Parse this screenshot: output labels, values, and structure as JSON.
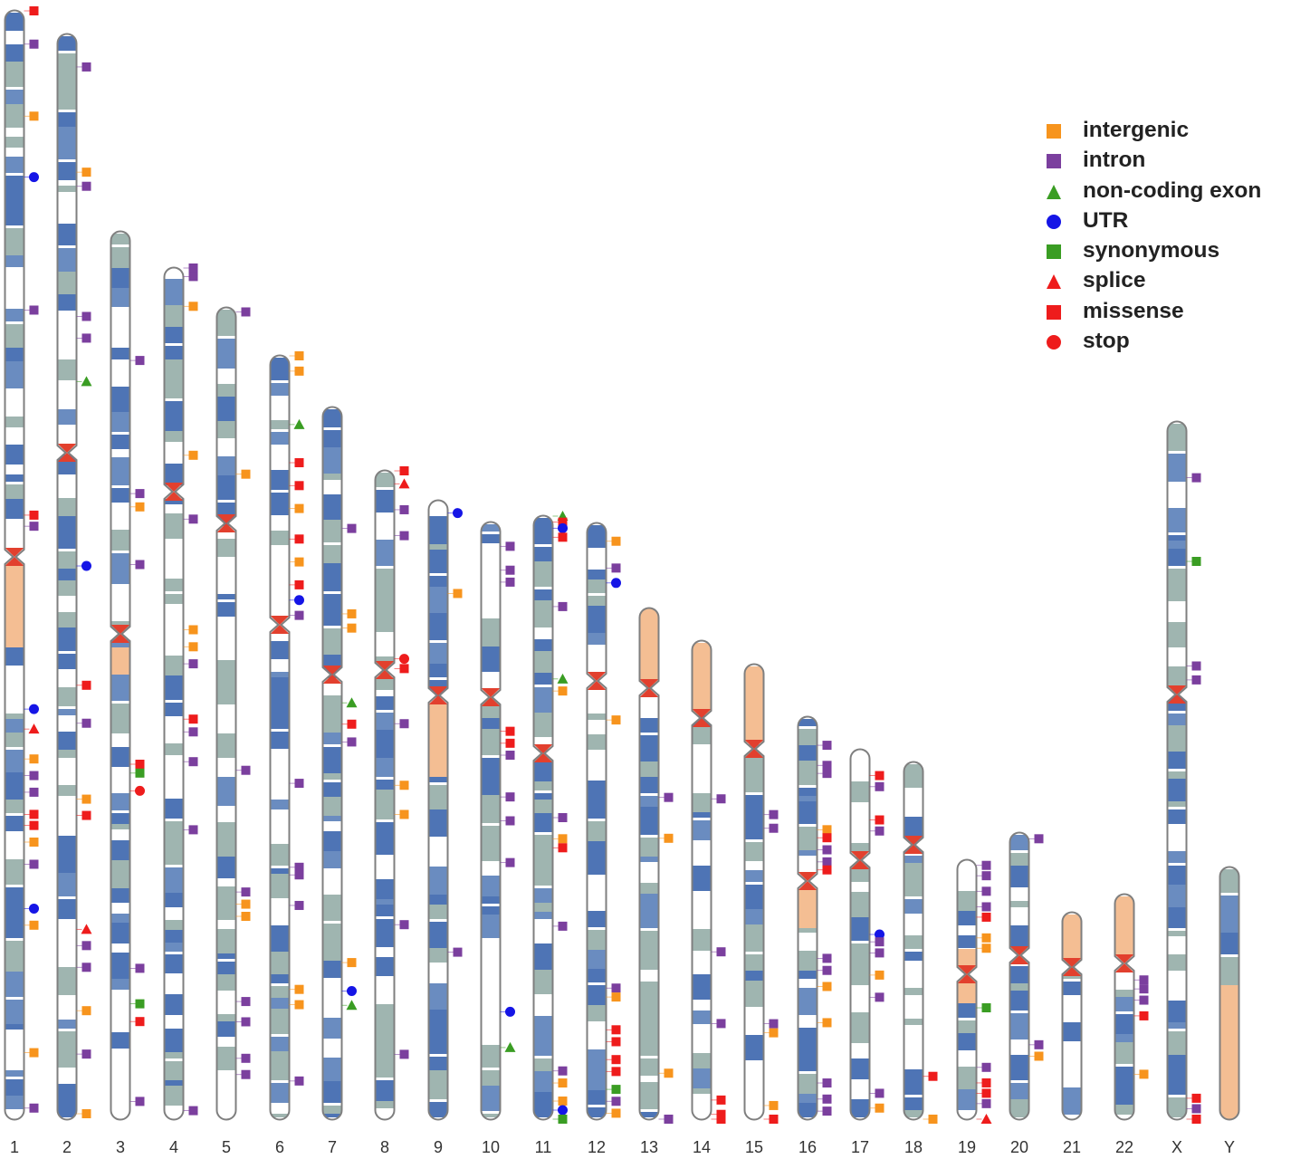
{
  "legend": {
    "items": [
      {
        "key": "intergenic",
        "label": "intergenic",
        "shape": "square",
        "color": "#F7941D"
      },
      {
        "key": "intron",
        "label": "intron",
        "shape": "square",
        "color": "#7B3F9E"
      },
      {
        "key": "noncoding",
        "label": "non-coding exon",
        "shape": "triangle",
        "color": "#3A9D23"
      },
      {
        "key": "utr",
        "label": "UTR",
        "shape": "circle",
        "color": "#1515E6"
      },
      {
        "key": "synonymous",
        "label": "synonymous",
        "shape": "square",
        "color": "#3A9D23"
      },
      {
        "key": "splice",
        "label": "splice",
        "shape": "triangle",
        "color": "#EE1C1C"
      },
      {
        "key": "missense",
        "label": "missense",
        "shape": "square",
        "color": "#EE1C1C"
      },
      {
        "key": "stop",
        "label": "stop",
        "shape": "circle",
        "color": "#EE1C1C"
      }
    ]
  },
  "colors": {
    "dark_band": "#4E74B5",
    "mid_band": "#6A8CC0",
    "light_band": "#9FB5B0",
    "heterochromatin": "#F4BE93",
    "centromere": "#E2402E",
    "outline": "#7F7F7F"
  },
  "chromosomes": [
    {
      "label": "1",
      "variants": [
        {
          "t": "missense",
          "p": 0.0
        },
        {
          "t": "intron",
          "p": 0.03
        },
        {
          "t": "intergenic",
          "p": 0.095
        },
        {
          "t": "utr",
          "p": 0.15
        },
        {
          "t": "intron",
          "p": 0.27
        },
        {
          "t": "missense",
          "p": 0.455
        },
        {
          "t": "intron",
          "p": 0.465
        },
        {
          "t": "utr",
          "p": 0.63
        },
        {
          "t": "splice",
          "p": 0.648
        },
        {
          "t": "intergenic",
          "p": 0.675
        },
        {
          "t": "intron",
          "p": 0.69
        },
        {
          "t": "intron",
          "p": 0.705
        },
        {
          "t": "missense",
          "p": 0.725
        },
        {
          "t": "missense",
          "p": 0.735
        },
        {
          "t": "intergenic",
          "p": 0.75
        },
        {
          "t": "intron",
          "p": 0.77
        },
        {
          "t": "utr",
          "p": 0.81
        },
        {
          "t": "intergenic",
          "p": 0.825
        },
        {
          "t": "intergenic",
          "p": 0.94
        },
        {
          "t": "intron",
          "p": 0.99
        }
      ]
    },
    {
      "label": "2",
      "variants": [
        {
          "t": "intron",
          "p": 0.03
        },
        {
          "t": "intergenic",
          "p": 0.127
        },
        {
          "t": "intron",
          "p": 0.14
        },
        {
          "t": "intron",
          "p": 0.26
        },
        {
          "t": "intron",
          "p": 0.28
        },
        {
          "t": "noncoding",
          "p": 0.32
        },
        {
          "t": "utr",
          "p": 0.49
        },
        {
          "t": "missense",
          "p": 0.6
        },
        {
          "t": "intron",
          "p": 0.635
        },
        {
          "t": "intergenic",
          "p": 0.705
        },
        {
          "t": "missense",
          "p": 0.72
        },
        {
          "t": "splice",
          "p": 0.825
        },
        {
          "t": "intron",
          "p": 0.84
        },
        {
          "t": "intron",
          "p": 0.86
        },
        {
          "t": "intergenic",
          "p": 0.9
        },
        {
          "t": "intron",
          "p": 0.94
        },
        {
          "t": "intergenic",
          "p": 0.995
        }
      ]
    },
    {
      "label": "3",
      "variants": [
        {
          "t": "intron",
          "p": 0.145
        },
        {
          "t": "intron",
          "p": 0.295
        },
        {
          "t": "intergenic",
          "p": 0.31
        },
        {
          "t": "intron",
          "p": 0.375
        },
        {
          "t": "missense",
          "p": 0.6
        },
        {
          "t": "synonymous",
          "p": 0.61
        },
        {
          "t": "stop",
          "p": 0.63
        },
        {
          "t": "intron",
          "p": 0.83
        },
        {
          "t": "synonymous",
          "p": 0.87
        },
        {
          "t": "missense",
          "p": 0.89
        },
        {
          "t": "intron",
          "p": 0.98
        }
      ]
    },
    {
      "label": "4",
      "variants": [
        {
          "t": "intron",
          "p": 0.0
        },
        {
          "t": "intron",
          "p": 0.01
        },
        {
          "t": "intergenic",
          "p": 0.045
        },
        {
          "t": "intergenic",
          "p": 0.22
        },
        {
          "t": "intron",
          "p": 0.295
        },
        {
          "t": "intergenic",
          "p": 0.425
        },
        {
          "t": "intergenic",
          "p": 0.445
        },
        {
          "t": "intron",
          "p": 0.465
        },
        {
          "t": "missense",
          "p": 0.53
        },
        {
          "t": "intron",
          "p": 0.545
        },
        {
          "t": "intron",
          "p": 0.58
        },
        {
          "t": "intron",
          "p": 0.66
        },
        {
          "t": "intron",
          "p": 0.99
        }
      ]
    },
    {
      "label": "5",
      "variants": [
        {
          "t": "intron",
          "p": 0.005
        },
        {
          "t": "intergenic",
          "p": 0.205
        },
        {
          "t": "intron",
          "p": 0.57
        },
        {
          "t": "intron",
          "p": 0.72
        },
        {
          "t": "intergenic",
          "p": 0.735
        },
        {
          "t": "intergenic",
          "p": 0.75
        },
        {
          "t": "intron",
          "p": 0.855
        },
        {
          "t": "intron",
          "p": 0.88
        },
        {
          "t": "intron",
          "p": 0.925
        },
        {
          "t": "intron",
          "p": 0.945
        }
      ]
    },
    {
      "label": "6",
      "variants": [
        {
          "t": "intergenic",
          "p": 0.0
        },
        {
          "t": "intergenic",
          "p": 0.02
        },
        {
          "t": "noncoding",
          "p": 0.09
        },
        {
          "t": "missense",
          "p": 0.14
        },
        {
          "t": "missense",
          "p": 0.17
        },
        {
          "t": "intergenic",
          "p": 0.2
        },
        {
          "t": "missense",
          "p": 0.24
        },
        {
          "t": "intergenic",
          "p": 0.27
        },
        {
          "t": "missense",
          "p": 0.3
        },
        {
          "t": "utr",
          "p": 0.32
        },
        {
          "t": "intron",
          "p": 0.34
        },
        {
          "t": "intron",
          "p": 0.56
        },
        {
          "t": "intron",
          "p": 0.67
        },
        {
          "t": "intron",
          "p": 0.68
        },
        {
          "t": "intron",
          "p": 0.72
        },
        {
          "t": "intergenic",
          "p": 0.83
        },
        {
          "t": "intergenic",
          "p": 0.85
        },
        {
          "t": "intron",
          "p": 0.95
        }
      ]
    },
    {
      "label": "7",
      "variants": [
        {
          "t": "intron",
          "p": 0.17
        },
        {
          "t": "intergenic",
          "p": 0.29
        },
        {
          "t": "intergenic",
          "p": 0.31
        },
        {
          "t": "noncoding",
          "p": 0.415
        },
        {
          "t": "missense",
          "p": 0.445
        },
        {
          "t": "intron",
          "p": 0.47
        },
        {
          "t": "intergenic",
          "p": 0.78
        },
        {
          "t": "utr",
          "p": 0.82
        },
        {
          "t": "noncoding",
          "p": 0.84
        }
      ]
    },
    {
      "label": "8",
      "variants": [
        {
          "t": "missense",
          "p": 0.0
        },
        {
          "t": "splice",
          "p": 0.02
        },
        {
          "t": "intron",
          "p": 0.06
        },
        {
          "t": "intron",
          "p": 0.1
        },
        {
          "t": "stop",
          "p": 0.29
        },
        {
          "t": "missense",
          "p": 0.305
        },
        {
          "t": "intron",
          "p": 0.39
        },
        {
          "t": "intergenic",
          "p": 0.485
        },
        {
          "t": "intergenic",
          "p": 0.53
        },
        {
          "t": "intron",
          "p": 0.7
        },
        {
          "t": "intron",
          "p": 0.9
        }
      ]
    },
    {
      "label": "9",
      "variants": [
        {
          "t": "utr",
          "p": 0.02
        },
        {
          "t": "intergenic",
          "p": 0.15
        },
        {
          "t": "intron",
          "p": 0.73
        }
      ]
    },
    {
      "label": "10",
      "variants": [
        {
          "t": "intron",
          "p": 0.04
        },
        {
          "t": "intron",
          "p": 0.08
        },
        {
          "t": "intron",
          "p": 0.1
        },
        {
          "t": "missense",
          "p": 0.35
        },
        {
          "t": "missense",
          "p": 0.37
        },
        {
          "t": "intron",
          "p": 0.39
        },
        {
          "t": "intron",
          "p": 0.46
        },
        {
          "t": "intron",
          "p": 0.5
        },
        {
          "t": "intron",
          "p": 0.57
        },
        {
          "t": "utr",
          "p": 0.82
        },
        {
          "t": "noncoding",
          "p": 0.88
        }
      ]
    },
    {
      "label": "11",
      "variants": [
        {
          "t": "noncoding",
          "p": 0.0
        },
        {
          "t": "missense",
          "p": 0.01
        },
        {
          "t": "utr",
          "p": 0.02
        },
        {
          "t": "missense",
          "p": 0.035
        },
        {
          "t": "intron",
          "p": 0.15
        },
        {
          "t": "noncoding",
          "p": 0.27
        },
        {
          "t": "intergenic",
          "p": 0.29
        },
        {
          "t": "intron",
          "p": 0.5
        },
        {
          "t": "intergenic",
          "p": 0.535
        },
        {
          "t": "missense",
          "p": 0.55
        },
        {
          "t": "intron",
          "p": 0.68
        },
        {
          "t": "intron",
          "p": 0.92
        },
        {
          "t": "intergenic",
          "p": 0.94
        },
        {
          "t": "intergenic",
          "p": 0.97
        },
        {
          "t": "utr",
          "p": 0.985
        },
        {
          "t": "synonymous",
          "p": 1.0
        }
      ]
    },
    {
      "label": "12",
      "variants": [
        {
          "t": "intergenic",
          "p": 0.03
        },
        {
          "t": "intron",
          "p": 0.075
        },
        {
          "t": "utr",
          "p": 0.1
        },
        {
          "t": "intergenic",
          "p": 0.33
        },
        {
          "t": "intron",
          "p": 0.78
        },
        {
          "t": "intergenic",
          "p": 0.795
        },
        {
          "t": "missense",
          "p": 0.85
        },
        {
          "t": "missense",
          "p": 0.87
        },
        {
          "t": "missense",
          "p": 0.9
        },
        {
          "t": "missense",
          "p": 0.92
        },
        {
          "t": "synonymous",
          "p": 0.95
        },
        {
          "t": "intron",
          "p": 0.97
        },
        {
          "t": "intergenic",
          "p": 0.99
        }
      ]
    },
    {
      "label": "13",
      "variants": [
        {
          "t": "intron",
          "p": 0.37
        },
        {
          "t": "intergenic",
          "p": 0.45
        },
        {
          "t": "intergenic",
          "p": 0.91
        },
        {
          "t": "intron",
          "p": 1.0
        }
      ]
    },
    {
      "label": "14",
      "variants": [
        {
          "t": "intron",
          "p": 0.33
        },
        {
          "t": "intron",
          "p": 0.65
        },
        {
          "t": "intron",
          "p": 0.8
        },
        {
          "t": "missense",
          "p": 0.96
        },
        {
          "t": "missense",
          "p": 0.99
        },
        {
          "t": "missense",
          "p": 1.0
        }
      ]
    },
    {
      "label": "15",
      "variants": [
        {
          "t": "intron",
          "p": 0.33
        },
        {
          "t": "intron",
          "p": 0.36
        },
        {
          "t": "intron",
          "p": 0.79
        },
        {
          "t": "intergenic",
          "p": 0.81
        },
        {
          "t": "intergenic",
          "p": 0.97
        },
        {
          "t": "missense",
          "p": 1.0
        }
      ]
    },
    {
      "label": "16",
      "variants": [
        {
          "t": "intron",
          "p": 0.07
        },
        {
          "t": "intron",
          "p": 0.12
        },
        {
          "t": "intron",
          "p": 0.14
        },
        {
          "t": "intergenic",
          "p": 0.28
        },
        {
          "t": "missense",
          "p": 0.3
        },
        {
          "t": "intron",
          "p": 0.33
        },
        {
          "t": "intron",
          "p": 0.36
        },
        {
          "t": "missense",
          "p": 0.38
        },
        {
          "t": "intron",
          "p": 0.6
        },
        {
          "t": "intron",
          "p": 0.63
        },
        {
          "t": "intergenic",
          "p": 0.67
        },
        {
          "t": "intergenic",
          "p": 0.76
        },
        {
          "t": "intron",
          "p": 0.91
        },
        {
          "t": "intron",
          "p": 0.95
        },
        {
          "t": "intron",
          "p": 0.98
        }
      ]
    },
    {
      "label": "17",
      "variants": [
        {
          "t": "missense",
          "p": 0.07
        },
        {
          "t": "intron",
          "p": 0.1
        },
        {
          "t": "missense",
          "p": 0.19
        },
        {
          "t": "intron",
          "p": 0.22
        },
        {
          "t": "utr",
          "p": 0.5
        },
        {
          "t": "intron",
          "p": 0.52
        },
        {
          "t": "intron",
          "p": 0.55
        },
        {
          "t": "intergenic",
          "p": 0.61
        },
        {
          "t": "intron",
          "p": 0.67
        },
        {
          "t": "intron",
          "p": 0.93
        },
        {
          "t": "intergenic",
          "p": 0.97
        }
      ]
    },
    {
      "label": "18",
      "variants": [
        {
          "t": "missense",
          "p": 0.88
        },
        {
          "t": "intergenic",
          "p": 1.0
        }
      ]
    },
    {
      "label": "19",
      "variants": [
        {
          "t": "intron",
          "p": 0.02
        },
        {
          "t": "intron",
          "p": 0.06
        },
        {
          "t": "intron",
          "p": 0.12
        },
        {
          "t": "intron",
          "p": 0.18
        },
        {
          "t": "missense",
          "p": 0.22
        },
        {
          "t": "intergenic",
          "p": 0.3
        },
        {
          "t": "intergenic",
          "p": 0.34
        },
        {
          "t": "synonymous",
          "p": 0.57
        },
        {
          "t": "intron",
          "p": 0.8
        },
        {
          "t": "missense",
          "p": 0.86
        },
        {
          "t": "missense",
          "p": 0.9
        },
        {
          "t": "intron",
          "p": 0.94
        },
        {
          "t": "splice",
          "p": 1.0
        }
      ]
    },
    {
      "label": "20",
      "variants": [
        {
          "t": "intron",
          "p": 0.02
        },
        {
          "t": "intron",
          "p": 0.74
        },
        {
          "t": "intergenic",
          "p": 0.78
        }
      ]
    },
    {
      "label": "21",
      "variants": []
    },
    {
      "label": "22",
      "variants": [
        {
          "t": "intron",
          "p": 0.38
        },
        {
          "t": "intron",
          "p": 0.42
        },
        {
          "t": "intron",
          "p": 0.47
        },
        {
          "t": "missense",
          "p": 0.54
        },
        {
          "t": "intergenic",
          "p": 0.8
        }
      ]
    },
    {
      "label": "X",
      "variants": [
        {
          "t": "intron",
          "p": 0.08
        },
        {
          "t": "synonymous",
          "p": 0.2
        },
        {
          "t": "intron",
          "p": 0.35
        },
        {
          "t": "intron",
          "p": 0.37
        },
        {
          "t": "missense",
          "p": 0.97
        },
        {
          "t": "intron",
          "p": 0.985
        },
        {
          "t": "missense",
          "p": 1.0
        }
      ]
    },
    {
      "label": "Y",
      "variants": []
    }
  ]
}
